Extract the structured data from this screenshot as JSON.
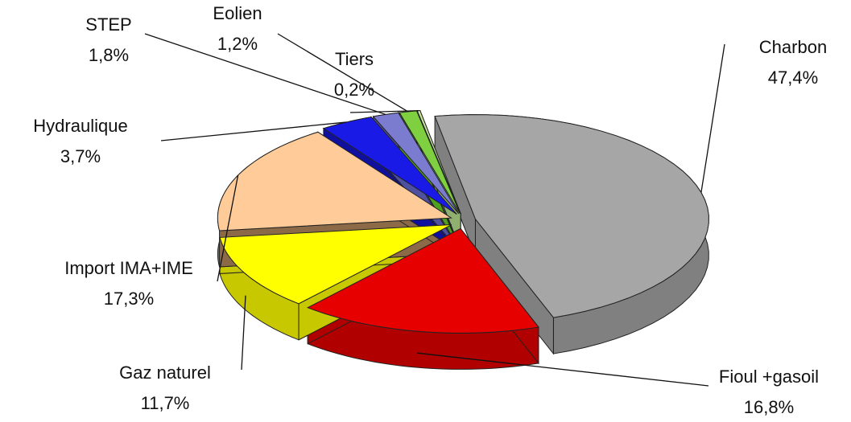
{
  "chart_data": {
    "type": "pie",
    "categories": [
      "Charbon",
      "Fioul +gasoil",
      "Gaz naturel",
      "Import IMA+IME",
      "Hydraulique",
      "STEP",
      "Eolien",
      "Tiers"
    ],
    "values": [
      47.4,
      16.8,
      11.7,
      17.3,
      3.7,
      1.8,
      1.2,
      0.2
    ],
    "value_labels": [
      "47,4%",
      "16,8%",
      "11,7%",
      "17,3%",
      "3,7%",
      "1,8%",
      "1,2%",
      "0,2%"
    ],
    "colors": [
      "#a6a6a6",
      "#e60000",
      "#ffff00",
      "#ffcc99",
      "#1a1ae6",
      "#7b7bd0",
      "#7fd040",
      "#c8e6a0"
    ],
    "side_colors": [
      "#808080",
      "#b00000",
      "#c8c800",
      "#8c6a48",
      "#1010a0",
      "#5050a0",
      "#50a020",
      "#90b070"
    ]
  }
}
